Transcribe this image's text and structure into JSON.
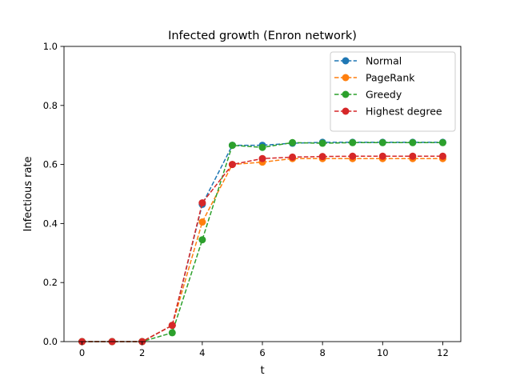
{
  "chart_data": {
    "type": "line",
    "title": "Infected growth (Enron network)",
    "xlabel": "t",
    "ylabel": "Infectious rate",
    "xlim": [
      -0.6,
      12.6
    ],
    "ylim": [
      0.0,
      1.0
    ],
    "xticks": [
      0,
      2,
      4,
      6,
      8,
      10,
      12
    ],
    "yticks": [
      0.0,
      0.2,
      0.4,
      0.6,
      0.8,
      1.0
    ],
    "grid": false,
    "legend_position": "top-right",
    "x": [
      0,
      1,
      2,
      3,
      4,
      5,
      6,
      7,
      8,
      9,
      10,
      11,
      12
    ],
    "series": [
      {
        "name": "Normal",
        "color": "#1f77b4",
        "line_style": "dashed",
        "marker": "circle",
        "values": [
          0.0,
          0.0,
          0.0,
          0.055,
          0.465,
          0.665,
          0.665,
          0.672,
          0.675,
          0.675,
          0.675,
          0.675,
          0.675
        ]
      },
      {
        "name": "PageRank",
        "color": "#ff7f0e",
        "line_style": "dashed",
        "marker": "circle",
        "values": [
          0.0,
          0.0,
          0.0,
          0.055,
          0.405,
          0.6,
          0.608,
          0.62,
          0.62,
          0.62,
          0.62,
          0.62,
          0.62
        ]
      },
      {
        "name": "Greedy",
        "color": "#2ca02c",
        "line_style": "dashed",
        "marker": "circle",
        "values": [
          0.0,
          0.0,
          0.0,
          0.03,
          0.345,
          0.665,
          0.658,
          0.674,
          0.672,
          0.674,
          0.674,
          0.674,
          0.674
        ]
      },
      {
        "name": "Highest degree",
        "color": "#d62728",
        "line_style": "dashed",
        "marker": "circle",
        "values": [
          0.0,
          0.0,
          0.0,
          0.055,
          0.47,
          0.6,
          0.62,
          0.625,
          0.627,
          0.628,
          0.628,
          0.628,
          0.628
        ]
      }
    ]
  }
}
